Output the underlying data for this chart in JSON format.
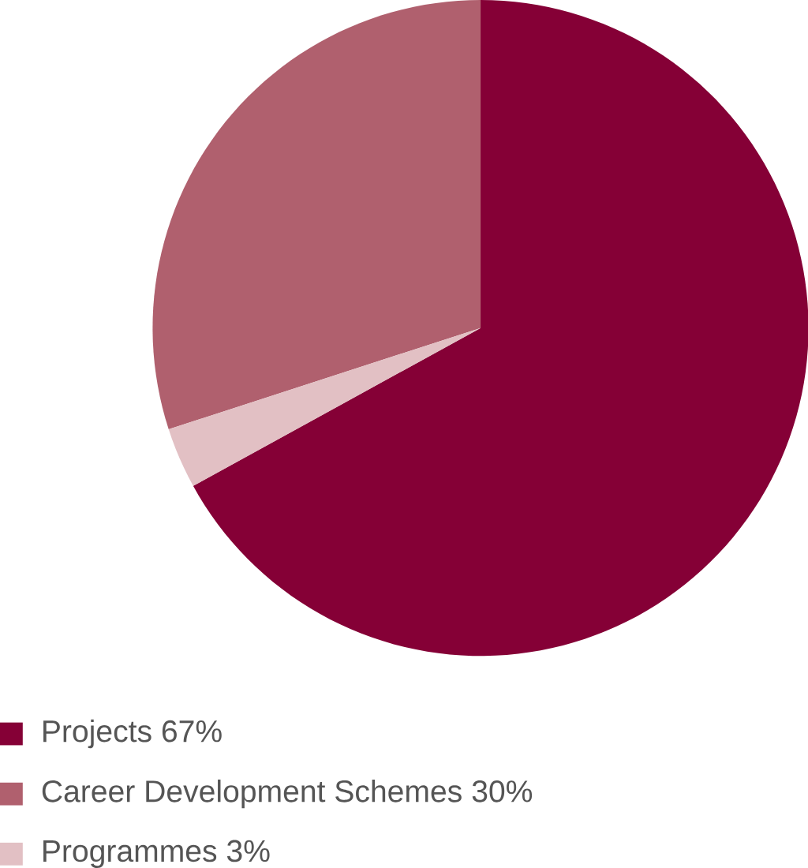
{
  "chart_data": {
    "type": "pie",
    "categories": [
      "Projects",
      "Career Development Schemes",
      "Programmes"
    ],
    "values": [
      67,
      30,
      3
    ],
    "value_labels": [
      "67%",
      "30%",
      "3%"
    ],
    "colors": [
      "#850036",
      "#b0606e",
      "#e2c0c4"
    ],
    "legend": "bottom"
  }
}
